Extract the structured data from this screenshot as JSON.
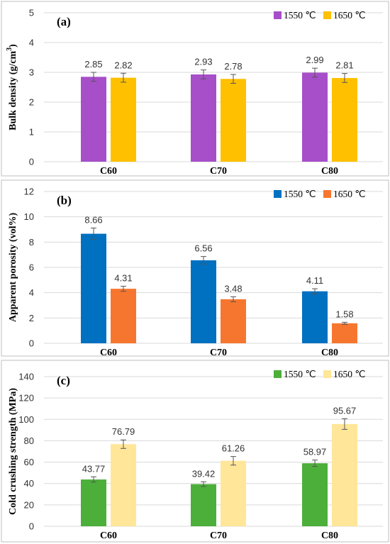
{
  "chart_data": [
    {
      "type": "bar",
      "panel_label": "(a)",
      "ylabel": "Bulk density (g/cm3)",
      "ylabel_parts": [
        "Bulk density (g/cm",
        "3",
        ")"
      ],
      "ylim": [
        0,
        5
      ],
      "yticks": [
        0,
        1,
        2,
        3,
        4,
        5
      ],
      "categories": [
        "C60",
        "C70",
        "C80"
      ],
      "legend_position": "top-right",
      "series": [
        {
          "name": "1550 ℃",
          "color": "#a64fc9",
          "values": [
            2.85,
            2.93,
            2.99
          ],
          "errors": [
            0.15,
            0.15,
            0.15
          ]
        },
        {
          "name": "1650 ℃",
          "color": "#ffc000",
          "values": [
            2.82,
            2.78,
            2.81
          ],
          "errors": [
            0.15,
            0.15,
            0.15
          ]
        }
      ],
      "value_labels": [
        [
          "2.85",
          "2.93",
          "2.99"
        ],
        [
          "2.82",
          "2.78",
          "2.81"
        ]
      ]
    },
    {
      "type": "bar",
      "panel_label": "(b)",
      "ylabel": "Apparent porosity (vol%)",
      "ylim": [
        0,
        12
      ],
      "yticks": [
        0,
        2,
        4,
        6,
        8,
        10,
        12
      ],
      "categories": [
        "C60",
        "C70",
        "C80"
      ],
      "legend_position": "top-right",
      "series": [
        {
          "name": "1550 ℃",
          "color": "#0070c0",
          "values": [
            8.66,
            6.56,
            4.11
          ],
          "errors": [
            0.45,
            0.3,
            0.2
          ]
        },
        {
          "name": "1650 ℃",
          "color": "#f7762f",
          "values": [
            4.31,
            3.48,
            1.58
          ],
          "errors": [
            0.2,
            0.2,
            0.08
          ]
        }
      ],
      "value_labels": [
        [
          "8.66",
          "6.56",
          "4.11"
        ],
        [
          "4.31",
          "3.48",
          "1.58"
        ]
      ]
    },
    {
      "type": "bar",
      "panel_label": "(c)",
      "ylabel": "Cold crushing strength (MPa)",
      "ylim": [
        0,
        140
      ],
      "yticks": [
        0,
        20,
        40,
        60,
        80,
        100,
        120,
        140
      ],
      "categories": [
        "C60",
        "C70",
        "C80"
      ],
      "legend_position": "top-right",
      "series": [
        {
          "name": "1550 ℃",
          "color": "#4caf3a",
          "values": [
            43.77,
            39.42,
            58.97
          ],
          "errors": [
            2.5,
            2.2,
            3.0
          ]
        },
        {
          "name": "1650 ℃",
          "color": "#ffe699",
          "values": [
            76.79,
            61.26,
            95.67
          ],
          "errors": [
            4.0,
            4.0,
            5.0
          ]
        }
      ],
      "value_labels": [
        [
          "43.77",
          "39.42",
          "58.97"
        ],
        [
          "76.79",
          "61.26",
          "95.67"
        ]
      ]
    }
  ]
}
